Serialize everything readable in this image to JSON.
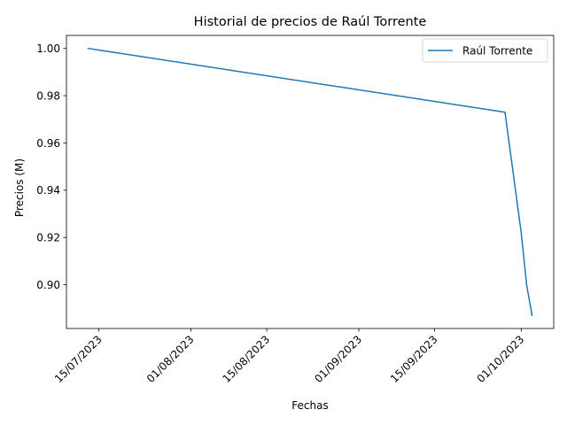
{
  "chart_data": {
    "type": "line",
    "title": "Historial de precios de Raúl Torrente",
    "xlabel": "Fechas",
    "ylabel": "Precios (M)",
    "x_type": "date",
    "xlim": [
      "2023-07-09",
      "2023-10-07"
    ],
    "ylim": [
      0.8815,
      1.0055
    ],
    "x_ticks": [
      {
        "date": "2023-07-15",
        "label": "15/07/2023"
      },
      {
        "date": "2023-08-01",
        "label": "01/08/2023"
      },
      {
        "date": "2023-08-15",
        "label": "15/08/2023"
      },
      {
        "date": "2023-09-01",
        "label": "01/09/2023"
      },
      {
        "date": "2023-09-15",
        "label": "15/09/2023"
      },
      {
        "date": "2023-10-01",
        "label": "01/10/2023"
      }
    ],
    "y_ticks": [
      {
        "value": 0.9,
        "label": "0.90"
      },
      {
        "value": 0.92,
        "label": "0.92"
      },
      {
        "value": 0.94,
        "label": "0.94"
      },
      {
        "value": 0.96,
        "label": "0.96"
      },
      {
        "value": 0.98,
        "label": "0.98"
      },
      {
        "value": 1.0,
        "label": "1.00"
      }
    ],
    "grid": false,
    "legend_position": "top-right",
    "series": [
      {
        "name": "Raúl Torrente",
        "color": "#1f77b4",
        "points": [
          {
            "x": "2023-07-13",
            "y": 1.0
          },
          {
            "x": "2023-09-28",
            "y": 0.973
          },
          {
            "x": "2023-10-01",
            "y": 0.922
          },
          {
            "x": "2023-10-02",
            "y": 0.9
          },
          {
            "x": "2023-10-03",
            "y": 0.887
          }
        ]
      }
    ]
  }
}
